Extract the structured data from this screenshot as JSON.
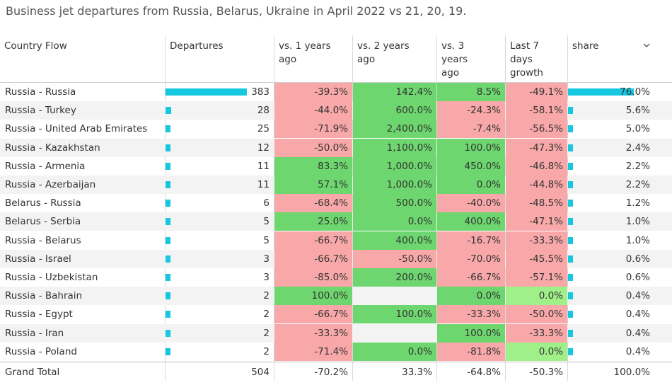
{
  "title": "Business jet departures from Russia, Belarus, Ukraine in April 2022 vs 21, 20, 19.",
  "headers": {
    "country": "Country Flow",
    "departures": "Departures",
    "vs1": [
      "vs. 1 years",
      "ago"
    ],
    "vs2": [
      "vs. 2 years",
      "ago"
    ],
    "vs3": [
      "vs. 3",
      "years",
      "ago"
    ],
    "last7": [
      "Last 7",
      "days",
      "growth"
    ],
    "share": "share"
  },
  "colors": {
    "negative": "#f8a8a8",
    "positive": "#6ed66e",
    "light_positive": "#a0f08a",
    "bar": "#16c7e0"
  },
  "rows": [
    {
      "flow": "Russia - Russia",
      "dep": "383",
      "v1": "-39.3%",
      "v2": "142.4%",
      "v3": "8.5%",
      "l7": "-49.1%",
      "share": "76.0%",
      "c1": "neg",
      "c2": "pos",
      "c3": "pos",
      "c4": "neg",
      "frac": 1.0
    },
    {
      "flow": "Russia - Turkey",
      "dep": "28",
      "v1": "-44.0%",
      "v2": "600.0%",
      "v3": "-24.3%",
      "l7": "-58.1%",
      "share": "5.6%",
      "c1": "neg",
      "c2": "pos",
      "c3": "neg",
      "c4": "neg",
      "frac": 0.073
    },
    {
      "flow": "Russia - United Arab Emirates",
      "dep": "25",
      "v1": "-71.9%",
      "v2": "2,400.0%",
      "v3": "-7.4%",
      "l7": "-56.5%",
      "share": "5.0%",
      "c1": "neg",
      "c2": "pos",
      "c3": "neg",
      "c4": "neg",
      "frac": 0.065
    },
    {
      "flow": "Russia - Kazakhstan",
      "dep": "12",
      "v1": "-50.0%",
      "v2": "1,100.0%",
      "v3": "100.0%",
      "l7": "-47.3%",
      "share": "2.4%",
      "c1": "neg",
      "c2": "pos",
      "c3": "pos",
      "c4": "neg",
      "frac": 0.031
    },
    {
      "flow": "Russia - Armenia",
      "dep": "11",
      "v1": "83.3%",
      "v2": "1,000.0%",
      "v3": "450.0%",
      "l7": "-46.8%",
      "share": "2.2%",
      "c1": "pos",
      "c2": "pos",
      "c3": "pos",
      "c4": "neg",
      "frac": 0.029
    },
    {
      "flow": "Russia - Azerbaijan",
      "dep": "11",
      "v1": "57.1%",
      "v2": "1,000.0%",
      "v3": "0.0%",
      "l7": "-44.8%",
      "share": "2.2%",
      "c1": "pos",
      "c2": "pos",
      "c3": "pos",
      "c4": "neg",
      "frac": 0.029
    },
    {
      "flow": "Belarus - Russia",
      "dep": "6",
      "v1": "-68.4%",
      "v2": "500.0%",
      "v3": "-40.0%",
      "l7": "-48.5%",
      "share": "1.2%",
      "c1": "neg",
      "c2": "pos",
      "c3": "neg",
      "c4": "neg",
      "frac": 0.016
    },
    {
      "flow": "Belarus - Serbia",
      "dep": "5",
      "v1": "25.0%",
      "v2": "0.0%",
      "v3": "400.0%",
      "l7": "-47.1%",
      "share": "1.0%",
      "c1": "pos",
      "c2": "pos",
      "c3": "pos",
      "c4": "neg",
      "frac": 0.013
    },
    {
      "flow": "Russia - Belarus",
      "dep": "5",
      "v1": "-66.7%",
      "v2": "400.0%",
      "v3": "-16.7%",
      "l7": "-33.3%",
      "share": "1.0%",
      "c1": "neg",
      "c2": "pos",
      "c3": "neg",
      "c4": "neg",
      "frac": 0.013
    },
    {
      "flow": "Russia - Israel",
      "dep": "3",
      "v1": "-66.7%",
      "v2": "-50.0%",
      "v3": "-70.0%",
      "l7": "-45.5%",
      "share": "0.6%",
      "c1": "neg",
      "c2": "neg",
      "c3": "neg",
      "c4": "neg",
      "frac": 0.008
    },
    {
      "flow": "Russia - Uzbekistan",
      "dep": "3",
      "v1": "-85.0%",
      "v2": "200.0%",
      "v3": "-66.7%",
      "l7": "-57.1%",
      "share": "0.6%",
      "c1": "neg",
      "c2": "pos",
      "c3": "neg",
      "c4": "neg",
      "frac": 0.008
    },
    {
      "flow": "Russia - Bahrain",
      "dep": "2",
      "v1": "100.0%",
      "v2": "",
      "v3": "0.0%",
      "l7": "0.0%",
      "share": "0.4%",
      "c1": "pos",
      "c2": "",
      "c3": "pos",
      "c4": "lpos",
      "frac": 0.005
    },
    {
      "flow": "Russia - Egypt",
      "dep": "2",
      "v1": "-66.7%",
      "v2": "100.0%",
      "v3": "-33.3%",
      "l7": "-50.0%",
      "share": "0.4%",
      "c1": "neg",
      "c2": "pos",
      "c3": "neg",
      "c4": "neg",
      "frac": 0.005
    },
    {
      "flow": "Russia - Iran",
      "dep": "2",
      "v1": "-33.3%",
      "v2": "",
      "v3": "100.0%",
      "l7": "-33.3%",
      "share": "0.4%",
      "c1": "neg",
      "c2": "",
      "c3": "pos",
      "c4": "neg",
      "frac": 0.005
    },
    {
      "flow": "Russia - Poland",
      "dep": "2",
      "v1": "-71.4%",
      "v2": "0.0%",
      "v3": "-81.8%",
      "l7": "0.0%",
      "share": "0.4%",
      "c1": "neg",
      "c2": "pos",
      "c3": "neg",
      "c4": "lpos",
      "frac": 0.005
    }
  ],
  "total": {
    "label": "Grand Total",
    "dep": "504",
    "v1": "-70.2%",
    "v2": "33.3%",
    "v3": "-64.8%",
    "l7": "-50.3%",
    "share": "100.0%"
  }
}
